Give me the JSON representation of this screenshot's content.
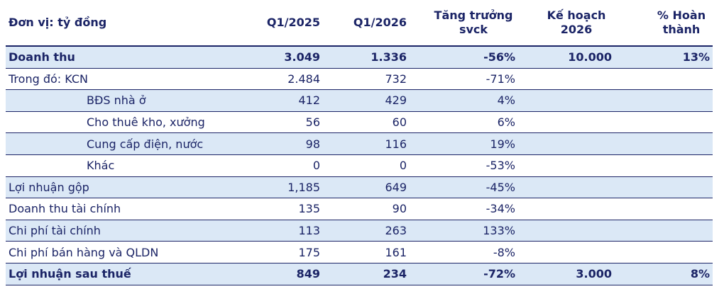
{
  "table": {
    "header": [
      "Đơn vị: tỷ đồng",
      "Q1/2025",
      "Q1/2026",
      "Tăng trưởng svck",
      "Kế hoạch 2026",
      "% Hoàn thành"
    ],
    "rows": [
      [
        "Doanh thu",
        "3.049",
        "1.336",
        "-56%",
        "10.000",
        "13%"
      ],
      [
        "Trong đó: KCN",
        "2.484",
        "732",
        "-71%",
        null,
        null
      ],
      [
        "BĐS nhà ở",
        "412",
        "429",
        "4%",
        null,
        null
      ],
      [
        "Cho thuê kho, xưởng",
        "56",
        "60",
        "6%",
        null,
        null
      ],
      [
        "Cung cấp điện, nước",
        "98",
        "116",
        "19%",
        null,
        null
      ],
      [
        "Khác",
        "0",
        "0",
        "-53%",
        null,
        null
      ],
      [
        "Lợi nhuận gộp",
        "1,185",
        "649",
        "-45%",
        null,
        null
      ],
      [
        "Doanh thu tài chính",
        "135",
        "90",
        "-34%",
        null,
        null
      ],
      [
        "Chi phí tài chính",
        "113",
        "263",
        "133%",
        null,
        null
      ],
      [
        "Chi phí bán hàng và QLDN",
        "175",
        "161",
        "-8%",
        null,
        null
      ],
      [
        "Lợi nhuận sau thuế",
        "849",
        "234",
        "-72%",
        "3.000",
        "8%"
      ]
    ]
  }
}
